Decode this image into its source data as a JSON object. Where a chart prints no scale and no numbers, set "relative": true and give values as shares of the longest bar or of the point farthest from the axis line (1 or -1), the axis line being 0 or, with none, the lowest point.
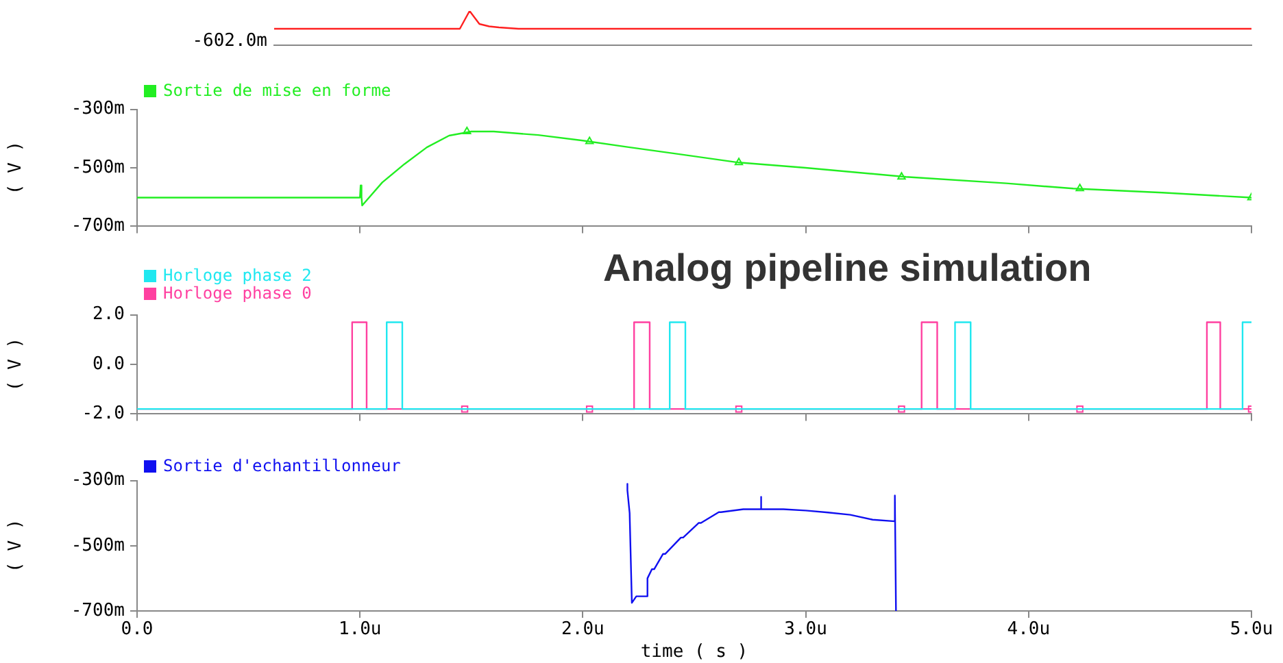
{
  "chart_data": [
    {
      "type": "line",
      "relative": true,
      "tick_labels": false,
      "categories": [
        null,
        null,
        null,
        null,
        null,
        null,
        null,
        null,
        null,
        null,
        null,
        null,
        null,
        null,
        null,
        null,
        null,
        null,
        null,
        null,
        null,
        null,
        null,
        null,
        null,
        null,
        null,
        null,
        null,
        null,
        null,
        null,
        null,
        null,
        null,
        null,
        null,
        null,
        null,
        null,
        null,
        null,
        null,
        null,
        null,
        null,
        null,
        null,
        null,
        null,
        null,
        null,
        null,
        null,
        null,
        null,
        null,
        null,
        null,
        null,
        null,
        null,
        null,
        null,
        null,
        null,
        null,
        null,
        null,
        null,
        null,
        null,
        null,
        null,
        null,
        null,
        null,
        null,
        null,
        null,
        null,
        null,
        null,
        null,
        null,
        null,
        null,
        null,
        null,
        null,
        null,
        null,
        null,
        null,
        null,
        null,
        null,
        null,
        null,
        null,
        null
      ],
      "annotations": [
        "-602.0m"
      ],
      "series": [
        {
          "color": "#ff2020",
          "values": [
            0.48,
            0.48,
            0.48,
            0.48,
            0.48,
            0.48,
            0.48,
            0.48,
            0.48,
            0.48,
            0.48,
            0.48,
            0.48,
            0.48,
            0.48,
            0.48,
            0.48,
            0.48,
            0.48,
            0.48,
            1,
            0.62,
            0.55,
            0.52,
            0.5,
            0.48,
            0.48,
            0.48,
            0.48,
            0.48,
            0.48,
            0.48,
            0.48,
            0.48,
            0.48,
            0.48,
            0.48,
            0.48,
            0.48,
            0.48,
            0.48,
            0.48,
            0.48,
            0.48,
            0.48,
            0.48,
            0.48,
            0.48,
            0.48,
            0.48,
            0.48,
            0.48,
            0.48,
            0.48,
            0.48,
            0.48,
            0.48,
            0.48,
            0.48,
            0.48,
            0.48,
            0.48,
            0.48,
            0.48,
            0.48,
            0.48,
            0.48,
            0.48,
            0.48,
            0.48,
            0.48,
            0.48,
            0.48,
            0.48,
            0.48,
            0.48,
            0.48,
            0.48,
            0.48,
            0.48,
            0.48,
            0.48,
            0.48,
            0.48,
            0.48,
            0.48,
            0.48,
            0.48,
            0.48,
            0.48,
            0.48,
            0.48,
            0.48,
            0.48,
            0.48,
            0.48,
            0.48,
            0.48,
            0.48,
            0.48,
            0.48
          ]
        }
      ]
    },
    {
      "type": "line",
      "ylabel": "( V )",
      "legend": "top left",
      "tick_labels": "y",
      "xlim": [
        0,
        5
      ],
      "xticks": [
        {
          "value": 0,
          "label": null
        },
        {
          "value": 1,
          "label": null
        },
        {
          "value": 2,
          "label": null
        },
        {
          "value": 3,
          "label": null
        },
        {
          "value": 4,
          "label": null
        },
        {
          "value": 5,
          "label": null
        }
      ],
      "ylim": [
        -700,
        -300
      ],
      "yticks": [
        {
          "value": -300,
          "label": "-300m"
        },
        {
          "value": -500,
          "label": "-500m"
        },
        {
          "value": -700,
          "label": "-700m"
        }
      ],
      "series": [
        {
          "name": "Sortie de mise en forme",
          "color": "#22ee22",
          "x": [
            0,
            1.0,
            1.003,
            1.007,
            1.01,
            1.02,
            1.1,
            1.2,
            1.3,
            1.4,
            1.5,
            1.6,
            1.8,
            2.0,
            2.2,
            2.4,
            2.7,
            3.0,
            3.45,
            3.9,
            4.2,
            4.6,
            5.0
          ],
          "values": [
            -602,
            -602,
            -560,
            -600,
            -629,
            -620,
            -550,
            -487,
            -430,
            -390,
            -376,
            -376,
            -388,
            -407,
            -429,
            -450,
            -482,
            -500,
            -531,
            -553,
            -571,
            -585,
            -602
          ]
        },
        {
          "type": "scatter",
          "marker": "triangle",
          "color": "#22ee22",
          "x": [
            1.48,
            2.03,
            2.7,
            3.43,
            4.23,
            5.0
          ],
          "values": [
            -376,
            -410,
            -482,
            -531,
            -571,
            -602
          ]
        }
      ]
    },
    {
      "type": "line",
      "title": "Analog pipeline simulation",
      "ylabel": "( V )",
      "legend": "top left",
      "tick_labels": "y",
      "xlim": [
        0,
        5
      ],
      "xticks": [
        {
          "value": 0,
          "label": null
        },
        {
          "value": 1,
          "label": null
        },
        {
          "value": 2,
          "label": null
        },
        {
          "value": 3,
          "label": null
        },
        {
          "value": 4,
          "label": null
        },
        {
          "value": 5,
          "label": null
        }
      ],
      "ylim": [
        -2,
        2
      ],
      "yticks": [
        {
          "value": 2,
          "label": "2.0"
        },
        {
          "value": 0,
          "label": "0.0"
        },
        {
          "value": -2,
          "label": "-2.0"
        }
      ],
      "series": [
        {
          "name": "Horloge phase 2",
          "color": "#20e8f0",
          "x": [
            0,
            1.12,
            1.12,
            1.19,
            1.19,
            2.39,
            2.39,
            2.46,
            2.46,
            3.67,
            3.67,
            3.74,
            3.74,
            4.96,
            4.96,
            5.0
          ],
          "values": [
            -1.8,
            -1.8,
            1.7,
            1.7,
            -1.8,
            -1.8,
            1.7,
            1.7,
            -1.8,
            -1.8,
            1.7,
            1.7,
            -1.8,
            -1.8,
            1.7,
            1.7
          ]
        },
        {
          "name": "Horloge phase 0",
          "color": "#ff40a0",
          "x": [
            0,
            0.965,
            0.965,
            1.03,
            1.03,
            2.23,
            2.23,
            2.3,
            2.3,
            3.52,
            3.52,
            3.59,
            3.59,
            4.8,
            4.8,
            4.86,
            4.86,
            5.0
          ],
          "values": [
            -1.8,
            -1.8,
            1.7,
            1.7,
            -1.8,
            -1.8,
            1.7,
            1.7,
            -1.8,
            -1.8,
            1.7,
            1.7,
            -1.8,
            -1.8,
            1.7,
            1.7,
            -1.8,
            -1.8
          ]
        },
        {
          "type": "scatter",
          "marker": "square",
          "color": "#ff40a0",
          "x": [
            1.47,
            2.03,
            2.7,
            3.43,
            4.23,
            5.0
          ],
          "values": [
            -1.8,
            -1.8,
            -1.8,
            -1.8,
            -1.8,
            -1.8
          ]
        }
      ]
    },
    {
      "type": "line",
      "xlabel": "time ( s )",
      "ylabel": "( V )",
      "legend": "top left",
      "xlim": [
        0,
        5
      ],
      "xticks": [
        {
          "value": 0,
          "label": "0.0"
        },
        {
          "value": 1,
          "label": "1.0u"
        },
        {
          "value": 2,
          "label": "2.0u"
        },
        {
          "value": 3,
          "label": "3.0u"
        },
        {
          "value": 4,
          "label": "4.0u"
        },
        {
          "value": 5,
          "label": "5.0u"
        }
      ],
      "ylim": [
        -700,
        -300
      ],
      "yticks": [
        {
          "value": -300,
          "label": "-300m"
        },
        {
          "value": -500,
          "label": "-500m"
        },
        {
          "value": -700,
          "label": "-700m"
        }
      ],
      "series": [
        {
          "name": "Sortie d'echantillonneur",
          "color": "#1010f0",
          "x": [
            2.2,
            2.2,
            2.21,
            2.22,
            2.24,
            2.29,
            2.29,
            2.31,
            2.32,
            2.36,
            2.37,
            2.44,
            2.45,
            2.52,
            2.53,
            2.61,
            2.62,
            2.72,
            2.8,
            2.8,
            2.8,
            2.9,
            3.0,
            3.1,
            3.2,
            3.3,
            3.4,
            3.4,
            3.405
          ],
          "values": [
            -310,
            -330,
            -400,
            -675,
            -655,
            -655,
            -600,
            -572,
            -572,
            -525,
            -525,
            -475,
            -475,
            -430,
            -430,
            -397,
            -397,
            -388,
            -388,
            -350,
            -388,
            -388,
            -392,
            -398,
            -405,
            -420,
            -425,
            -346,
            -700
          ]
        }
      ]
    }
  ]
}
